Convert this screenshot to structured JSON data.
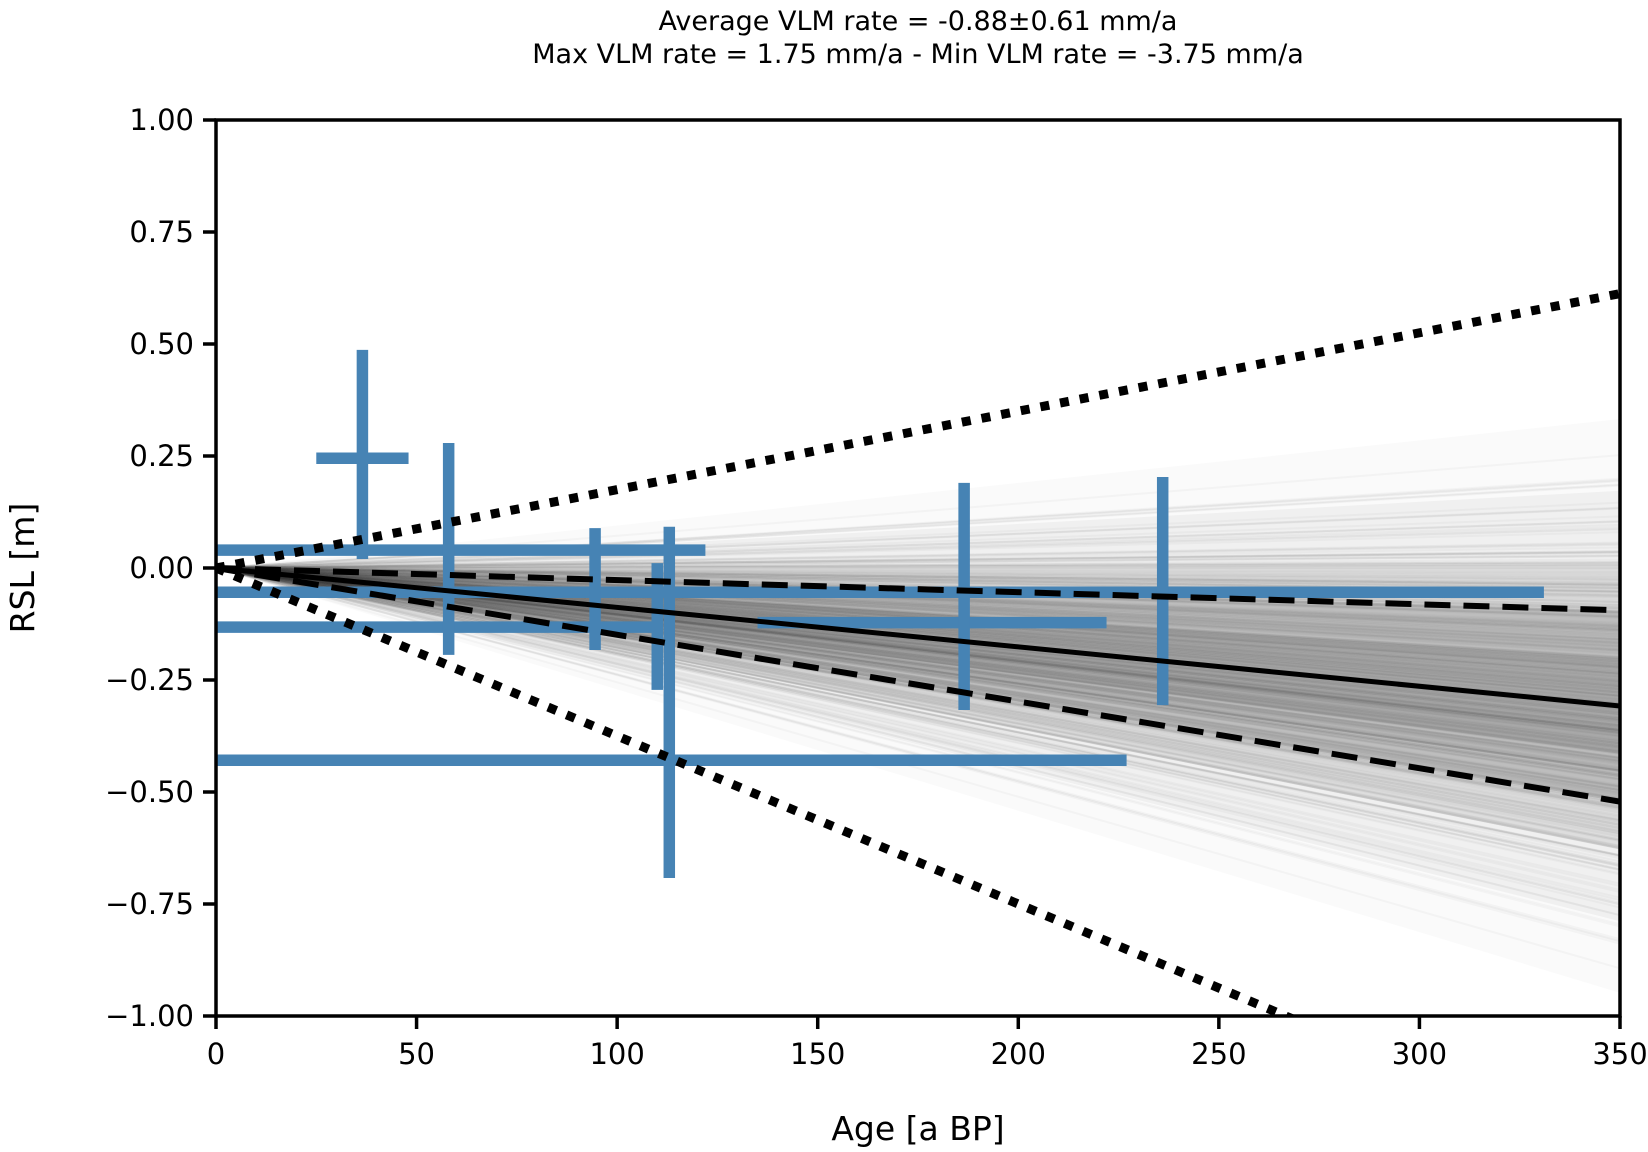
{
  "title": {
    "line1": "Average VLM rate = -0.88±0.61 mm/a",
    "line2": "Max VLM rate = 1.75 mm/a - Min VLM rate = -3.75 mm/a"
  },
  "chart_data": {
    "type": "line",
    "title": "Average VLM rate = -0.88±0.61 mm/a\nMax VLM rate = 1.75 mm/a - Min VLM rate = -3.75 mm/a",
    "xlabel": "Age [a BP]",
    "ylabel": "RSL [m]",
    "xlim": [
      0,
      350
    ],
    "ylim": [
      -1.0,
      1.0
    ],
    "xticks": [
      0,
      50,
      100,
      150,
      200,
      250,
      300,
      350
    ],
    "xtick_labels": [
      "0",
      "50",
      "100",
      "150",
      "200",
      "250",
      "300",
      "350"
    ],
    "yticks": [
      1.0,
      0.75,
      0.5,
      0.25,
      0.0,
      -0.25,
      -0.5,
      -0.75,
      -1.0
    ],
    "ytick_labels": [
      "1.00",
      "0.75",
      "0.50",
      "0.25",
      "0.00",
      "−0.25",
      "−0.50",
      "−0.75",
      "−1.00"
    ],
    "grid": false,
    "legend": "none",
    "vlm_rates_mm_per_a": {
      "average": -0.88,
      "std": 0.61,
      "max": 1.75,
      "min": -3.75
    },
    "reference_lines": [
      {
        "name": "mean-vlm-line",
        "style": "solid",
        "rate_mm_per_a": -0.88,
        "color": "#000000",
        "width": 5
      },
      {
        "name": "vlm-upper-dashed-line",
        "style": "dashed",
        "rate_mm_per_a": -0.27,
        "color": "#000000",
        "width": 6
      },
      {
        "name": "vlm-lower-dashed-line",
        "style": "dashed",
        "rate_mm_per_a": -1.49,
        "color": "#000000",
        "width": 6
      },
      {
        "name": "max-vlm-dotted-line",
        "style": "dotted",
        "rate_mm_per_a": 1.75,
        "color": "#000000",
        "width": 9
      },
      {
        "name": "min-vlm-dotted-line",
        "style": "dotted",
        "rate_mm_per_a": -3.75,
        "color": "#000000",
        "width": 9
      }
    ],
    "ensemble": {
      "count": 500,
      "mean": -0.88,
      "std": 0.61,
      "clip_min": -3.75,
      "clip_max": 1.75,
      "seed": 12,
      "line_color": "#444444",
      "line_alpha": 0.035,
      "line_width": 2,
      "wedge_levels": [
        {
          "sigma": 3.0,
          "alpha": 0.02
        },
        {
          "sigma": 2.25,
          "alpha": 0.04
        },
        {
          "sigma": 1.5,
          "alpha": 0.08
        },
        {
          "sigma": 1.0,
          "alpha": 0.14
        },
        {
          "sigma": 0.5,
          "alpha": 0.08
        }
      ]
    },
    "index_points": [
      {
        "age": 36.5,
        "age_range": [
          25,
          48
        ],
        "rsl": 0.245,
        "rsl_range": [
          0.02,
          0.487
        ]
      },
      {
        "age": 58,
        "age_range": [
          0,
          122
        ],
        "rsl": 0.04,
        "rsl_range": [
          -0.194,
          0.279
        ]
      },
      {
        "age": 94.5,
        "age_range": [
          0,
          331
        ],
        "rsl": -0.054,
        "rsl_range": [
          -0.183,
          0.089
        ]
      },
      {
        "age": 110,
        "age_range": [
          0,
          110
        ],
        "rsl": -0.132,
        "rsl_range": [
          -0.272,
          0.011
        ]
      },
      {
        "age": 113,
        "age_range": [
          0,
          227
        ],
        "rsl": -0.429,
        "rsl_range": [
          -0.692,
          0.092
        ]
      },
      {
        "age": 186.5,
        "age_range": [
          135,
          222
        ],
        "rsl": -0.122,
        "rsl_range": [
          -0.317,
          0.19
        ]
      },
      {
        "age": 236,
        "age_range": [
          0,
          331
        ],
        "rsl": -0.054,
        "rsl_range": [
          -0.306,
          0.203
        ]
      }
    ],
    "point_color": "#4683b4",
    "point_bar_width": 11.5,
    "axis_color": "#000000",
    "background_color": "#ffffff"
  }
}
